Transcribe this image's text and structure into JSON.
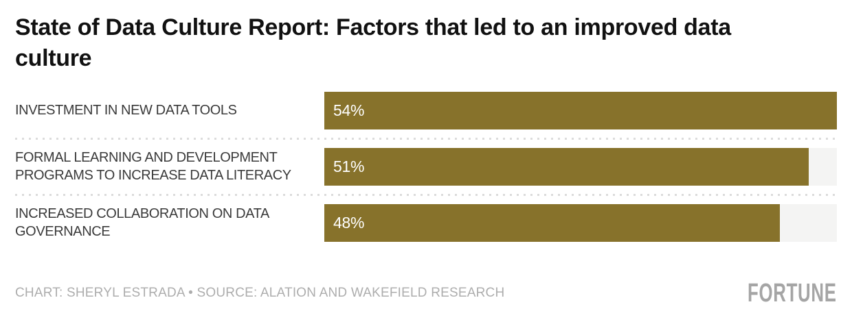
{
  "title": "State of Data Culture Report: Factors that led to an improved data culture",
  "chart_data": {
    "type": "bar",
    "orientation": "horizontal",
    "title": "State of Data Culture Report: Factors that led to an improved data culture",
    "categories": [
      "INVESTMENT IN NEW DATA TOOLS",
      "FORMAL LEARNING AND DEVELOPMENT PROGRAMS TO INCREASE DATA LITERACY",
      "INCREASED COLLABORATION ON DATA GOVERNANCE"
    ],
    "values": [
      54,
      51,
      48
    ],
    "value_labels": [
      "54%",
      "51%",
      "48%"
    ],
    "unit": "%",
    "xlim": [
      0,
      54
    ],
    "grid": false,
    "legend": "none",
    "bar_color": "#87722b",
    "track_color": "#f4f4f3"
  },
  "footer": {
    "credit": "CHART: SHERYL ESTRADA • SOURCE: ALATION AND WAKEFIELD RESEARCH",
    "logo": "FORTUNE"
  },
  "colors": {
    "title_text": "#111111",
    "category_text": "#3a3a3a",
    "value_text": "#ffffff",
    "bar": "#87722b",
    "track": "#f4f4f3",
    "divider_dots": "#dcdcdc",
    "credit_text": "#adadad",
    "logo_text": "#a5a5a5",
    "background": "#ffffff"
  }
}
